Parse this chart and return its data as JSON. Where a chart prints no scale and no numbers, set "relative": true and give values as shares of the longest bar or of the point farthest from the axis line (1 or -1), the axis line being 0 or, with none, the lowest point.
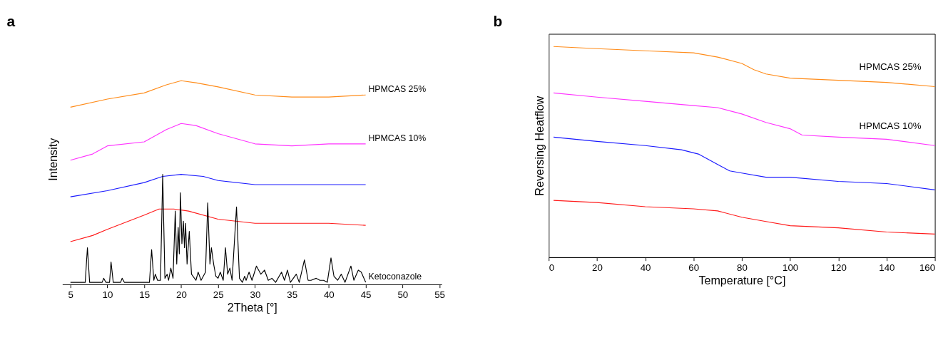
{
  "chart_data": [
    {
      "type": "line",
      "title": "a",
      "xlabel": "2Theta [°]",
      "ylabel": "Intensity",
      "relative": true,
      "xlim": [
        3.9,
        55.3
      ],
      "xticks": [
        5,
        10,
        15,
        20,
        25,
        30,
        35,
        40,
        45,
        50,
        55
      ],
      "grid": false,
      "legend": false,
      "series": [
        {
          "name": "HPMCAS 25%",
          "color": "#ff8c1a",
          "x": [
            5,
            10,
            15,
            18,
            20,
            22,
            25,
            30,
            35,
            40,
            45
          ],
          "values": [
            0.87,
            0.91,
            0.94,
            0.98,
            1.0,
            0.99,
            0.97,
            0.93,
            0.92,
            0.92,
            0.93
          ]
        },
        {
          "name": "HPMCAS 10%",
          "color": "#ff33ff",
          "x": [
            5,
            8,
            10,
            15,
            18,
            20,
            22,
            25,
            30,
            35,
            40,
            45
          ],
          "values": [
            0.61,
            0.64,
            0.68,
            0.7,
            0.76,
            0.79,
            0.78,
            0.74,
            0.69,
            0.68,
            0.69,
            0.69
          ]
        },
        {
          "color": "#1a1aff",
          "x": [
            5,
            10,
            15,
            17.5,
            20,
            23,
            25,
            30,
            35,
            40,
            45
          ],
          "values": [
            0.43,
            0.46,
            0.5,
            0.53,
            0.54,
            0.53,
            0.51,
            0.49,
            0.49,
            0.49,
            0.49
          ]
        },
        {
          "color": "#ff1a1a",
          "x": [
            5,
            8,
            10,
            15,
            17,
            19,
            21,
            25,
            30,
            35,
            40,
            45
          ],
          "values": [
            0.21,
            0.24,
            0.27,
            0.34,
            0.37,
            0.37,
            0.36,
            0.32,
            0.3,
            0.3,
            0.3,
            0.29
          ]
        },
        {
          "name": "Ketoconazole",
          "color": "#000000",
          "x": [
            5,
            7.0,
            7.3,
            7.6,
            9.3,
            9.5,
            9.8,
            10.3,
            10.5,
            10.8,
            11.8,
            12,
            12.3,
            15.7,
            16,
            16.3,
            16.5,
            16.8,
            17.2,
            17.5,
            17.8,
            18.1,
            18.3,
            18.6,
            18.9,
            19.2,
            19.4,
            19.6,
            19.75,
            19.9,
            20.1,
            20.3,
            20.45,
            20.6,
            20.8,
            21.1,
            21.4,
            22,
            22.3,
            22.7,
            23.3,
            23.6,
            23.9,
            24.1,
            24.4,
            24.7,
            25,
            25.3,
            25.7,
            26,
            26.3,
            26.6,
            26.9,
            27.5,
            27.9,
            28.3,
            28.6,
            28.8,
            29.2,
            29.6,
            30.2,
            30.8,
            31.3,
            31.8,
            32.3,
            32.8,
            33.6,
            34,
            34.4,
            34.8,
            35.6,
            36,
            36.7,
            37.2,
            37.6,
            38.3,
            38.8,
            39.3,
            39.8,
            40.3,
            40.7,
            41.2,
            41.7,
            42.2,
            43,
            43.4,
            44,
            44.4,
            45
          ],
          "values": [
            0.01,
            0.01,
            0.18,
            0.01,
            0.01,
            0.03,
            0.01,
            0.01,
            0.11,
            0.01,
            0.01,
            0.03,
            0.01,
            0.01,
            0.17,
            0.02,
            0.05,
            0.02,
            0.02,
            0.54,
            0.03,
            0.05,
            0.02,
            0.08,
            0.03,
            0.36,
            0.1,
            0.28,
            0.15,
            0.45,
            0.2,
            0.31,
            0.18,
            0.3,
            0.1,
            0.26,
            0.05,
            0.02,
            0.06,
            0.02,
            0.06,
            0.4,
            0.1,
            0.18,
            0.1,
            0.04,
            0.03,
            0.06,
            0.02,
            0.18,
            0.05,
            0.08,
            0.02,
            0.38,
            0.03,
            0.01,
            0.04,
            0.02,
            0.06,
            0.02,
            0.09,
            0.05,
            0.07,
            0.02,
            0.03,
            0.01,
            0.06,
            0.02,
            0.07,
            0.01,
            0.05,
            0.01,
            0.12,
            0.02,
            0.02,
            0.03,
            0.02,
            0.02,
            0.01,
            0.13,
            0.04,
            0.02,
            0.05,
            0.01,
            0.09,
            0.02,
            0.07,
            0.06,
            0.01
          ]
        }
      ]
    },
    {
      "type": "line",
      "title": "b",
      "xlabel": "Temperature [°C]",
      "ylabel": "Reversing Heatflow",
      "relative": true,
      "xlim": [
        0,
        160
      ],
      "xticks": [
        0,
        20,
        40,
        60,
        80,
        100,
        120,
        140,
        160
      ],
      "grid": false,
      "legend": false,
      "series": [
        {
          "name": "HPMCAS 25%",
          "color": "#ff8c1a",
          "x": [
            2,
            20,
            40,
            60,
            70,
            80,
            85,
            90,
            100,
            120,
            140,
            160
          ],
          "values": [
            1.0,
            0.99,
            0.98,
            0.97,
            0.95,
            0.92,
            0.89,
            0.87,
            0.85,
            0.84,
            0.83,
            0.81
          ]
        },
        {
          "name": "HPMCAS 10%",
          "color": "#ff33ff",
          "x": [
            2,
            20,
            40,
            60,
            70,
            80,
            90,
            100,
            105,
            120,
            140,
            160
          ],
          "values": [
            0.78,
            0.76,
            0.74,
            0.72,
            0.71,
            0.68,
            0.64,
            0.61,
            0.58,
            0.57,
            0.56,
            0.53
          ]
        },
        {
          "color": "#1a1aff",
          "x": [
            2,
            20,
            40,
            55,
            62,
            70,
            75,
            80,
            90,
            100,
            120,
            140,
            160
          ],
          "values": [
            0.57,
            0.55,
            0.53,
            0.51,
            0.49,
            0.44,
            0.41,
            0.4,
            0.38,
            0.38,
            0.36,
            0.35,
            0.32
          ]
        },
        {
          "color": "#ff1a1a",
          "x": [
            2,
            20,
            40,
            60,
            70,
            80,
            90,
            100,
            120,
            140,
            160
          ],
          "values": [
            0.27,
            0.26,
            0.24,
            0.23,
            0.22,
            0.19,
            0.17,
            0.15,
            0.14,
            0.12,
            0.11
          ]
        }
      ]
    }
  ]
}
